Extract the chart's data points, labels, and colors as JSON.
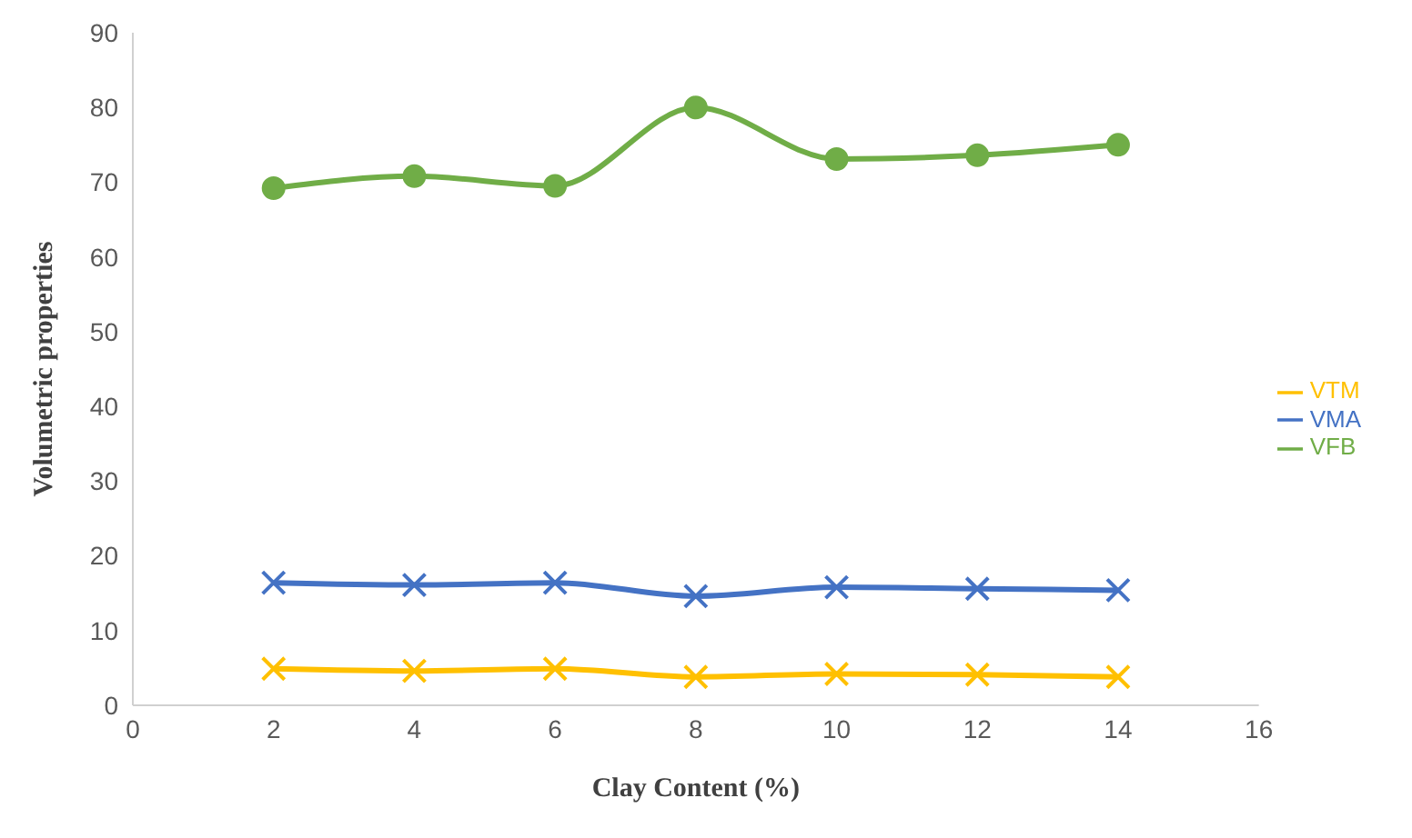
{
  "chart_data": {
    "type": "line",
    "xlabel": "Clay Content (%)",
    "ylabel": "Volumetric properties",
    "x": [
      2,
      4,
      6,
      8,
      10,
      12,
      14
    ],
    "series": [
      {
        "name": "VTM",
        "color": "#ffc000",
        "marker": "cross",
        "values": [
          4.9,
          4.6,
          4.9,
          3.8,
          4.2,
          4.1,
          3.8
        ]
      },
      {
        "name": "VMA",
        "color": "#4472c4",
        "marker": "cross",
        "values": [
          16.4,
          16.1,
          16.4,
          14.6,
          15.8,
          15.6,
          15.4
        ]
      },
      {
        "name": "VFB",
        "color": "#70ad47",
        "marker": "circle",
        "values": [
          69.2,
          70.8,
          69.5,
          80,
          73.1,
          73.6,
          75
        ]
      }
    ],
    "xlim": [
      0,
      16
    ],
    "xticks": [
      0,
      2,
      4,
      6,
      8,
      10,
      12,
      14,
      16
    ],
    "ylim": [
      0,
      90
    ],
    "yticks": [
      0,
      10,
      20,
      30,
      40,
      50,
      60,
      70,
      80,
      90
    ],
    "grid": false,
    "legend": "right"
  }
}
